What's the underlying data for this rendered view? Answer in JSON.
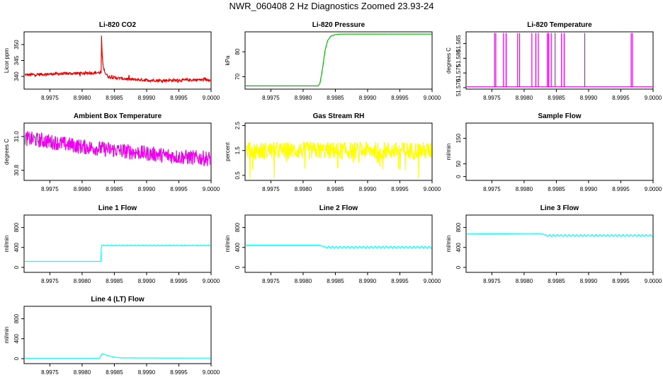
{
  "title": "NWR_060408  2 Hz Diagnostics Zoomed 23.93-24",
  "x_ticks": [
    "8.9975",
    "8.9980",
    "8.9985",
    "8.9990",
    "8.9995",
    "9.0000"
  ],
  "chart_data": [
    {
      "id": "co2",
      "type": "line",
      "title": "Li-820 CO2",
      "ylabel": "Licor ppm",
      "color": "#ee0000",
      "xlim": [
        8.9971,
        9.0
      ],
      "ylim": [
        336,
        354
      ],
      "y_ticks": [
        "340",
        "345",
        "350"
      ],
      "y_tick_values": [
        340,
        345,
        350
      ],
      "series": [
        {
          "x": [
            8.99711,
            8.9983,
            8.99829,
            8.9983,
            8.99831,
            8.99833,
            8.99836,
            8.9984,
            8.9985,
            8.9988,
            8.9992,
            8.99999
          ],
          "y": [
            340.5,
            341.2,
            337.2,
            353.0,
            346.5,
            343.0,
            341.0,
            340.0,
            339.6,
            339.0,
            338.7,
            339.0
          ]
        }
      ]
    },
    {
      "id": "pressure",
      "type": "line",
      "title": "Li-820 Pressure",
      "ylabel": "kPa",
      "color": "#00bb00",
      "xlim": [
        8.9971,
        9.0
      ],
      "ylim": [
        65,
        88
      ],
      "y_ticks": [
        "70",
        "80"
      ],
      "y_tick_values": [
        70,
        80
      ],
      "series": [
        {
          "x": [
            8.99711,
            8.99823,
            8.99826,
            8.9983,
            8.99834,
            8.99838,
            8.99843,
            8.9985,
            8.99858,
            8.99999
          ],
          "y": [
            66.3,
            66.3,
            67.2,
            73.0,
            80.5,
            84.5,
            86.3,
            86.9,
            87.1,
            87.1
          ]
        }
      ]
    },
    {
      "id": "temperature",
      "type": "line",
      "title": "Li-820 Temperature",
      "ylabel": "degrees C",
      "color": "#ee00ee",
      "xlim": [
        8.9971,
        9.0
      ],
      "ylim": [
        51.5695,
        51.589
      ],
      "y_ticks": [
        "51.570",
        "51.575",
        "51.580",
        "51.585"
      ],
      "y_tick_values": [
        51.57,
        51.575,
        51.58,
        51.585
      ],
      "series": [
        {
          "x": [
            8.99711,
            8.99999
          ],
          "y": [
            51.5703,
            51.5703
          ]
        }
      ]
    },
    {
      "id": "ambient",
      "type": "line",
      "title": "Ambient Box Temperature",
      "ylabel": "degrees C",
      "color": "#ee00ee",
      "xlim": [
        8.9971,
        9.0
      ],
      "ylim": [
        30.74,
        31.08
      ],
      "y_ticks": [
        "30.8",
        "31.0"
      ],
      "y_tick_values": [
        30.8,
        31.0
      ],
      "series": [
        {
          "x": [
            8.99711,
            8.9975,
            8.998,
            8.9985,
            8.999,
            8.9995,
            8.99999
          ],
          "y": [
            30.99,
            30.97,
            30.94,
            30.92,
            30.9,
            30.88,
            30.87
          ]
        }
      ]
    },
    {
      "id": "rh",
      "type": "line",
      "title": "Gas Stream RH",
      "ylabel": "percent",
      "color": "#ffff00",
      "xlim": [
        8.9971,
        9.0
      ],
      "ylim": [
        0.3,
        2.6
      ],
      "y_ticks": [
        "0.5",
        "1.5",
        "2.5"
      ],
      "y_tick_values": [
        0.5,
        1.5,
        2.5
      ],
      "series": [
        {
          "x": [
            8.99711,
            8.99999
          ],
          "y": [
            1.5,
            1.5
          ]
        }
      ]
    },
    {
      "id": "sample",
      "type": "line",
      "title": "Sample Flow",
      "ylabel": "ml/min",
      "color": "#00ffff",
      "xlim": [
        8.9971,
        9.0
      ],
      "ylim": [
        -15,
        210
      ],
      "y_ticks": [
        "0",
        "50",
        "150"
      ],
      "y_tick_values": [
        0,
        50,
        150
      ],
      "series": []
    },
    {
      "id": "line1",
      "type": "line",
      "title": "Line 1 Flow",
      "ylabel": "ml/min",
      "color": "#00ffff",
      "xlim": [
        8.9971,
        9.0
      ],
      "ylim": [
        -100,
        1050
      ],
      "y_ticks": [
        "0",
        "400",
        "800"
      ],
      "y_tick_values": [
        0,
        400,
        800
      ],
      "series": [
        {
          "x": [
            8.99711,
            8.99829,
            8.9983,
            8.99999
          ],
          "y": [
            120,
            120,
            440,
            440
          ]
        }
      ]
    },
    {
      "id": "line2",
      "type": "line",
      "title": "Line 2 Flow",
      "ylabel": "ml/min",
      "color": "#00ffff",
      "xlim": [
        8.9971,
        9.0
      ],
      "ylim": [
        -100,
        1050
      ],
      "y_ticks": [
        "0",
        "400",
        "800"
      ],
      "y_tick_values": [
        0,
        400,
        800
      ],
      "series": [
        {
          "x": [
            8.99711,
            8.99826,
            8.99834,
            8.99999
          ],
          "y": [
            445,
            445,
            405,
            405
          ]
        }
      ]
    },
    {
      "id": "line3",
      "type": "line",
      "title": "Line 3 Flow",
      "ylabel": "ml/min",
      "color": "#00ffff",
      "xlim": [
        8.9971,
        9.0
      ],
      "ylim": [
        -100,
        1050
      ],
      "y_ticks": [
        "0",
        "400",
        "800"
      ],
      "y_tick_values": [
        0,
        400,
        800
      ],
      "series": [
        {
          "x": [
            8.99711,
            8.99826,
            8.99834,
            8.99999
          ],
          "y": [
            670,
            680,
            640,
            640
          ]
        }
      ]
    },
    {
      "id": "line4",
      "type": "line",
      "title": "Line 4 (LT) Flow",
      "ylabel": "ml/min",
      "color": "#00ffff",
      "xlim": [
        8.9971,
        9.0
      ],
      "ylim": [
        -100,
        1050
      ],
      "y_ticks": [
        "0",
        "400",
        "800"
      ],
      "y_tick_values": [
        0,
        400,
        800
      ],
      "series": [
        {
          "x": [
            8.99711,
            8.99827,
            8.99831,
            8.9984,
            8.9985,
            8.9986,
            8.99999
          ],
          "y": [
            10,
            10,
            100,
            60,
            30,
            15,
            10
          ]
        }
      ]
    }
  ]
}
